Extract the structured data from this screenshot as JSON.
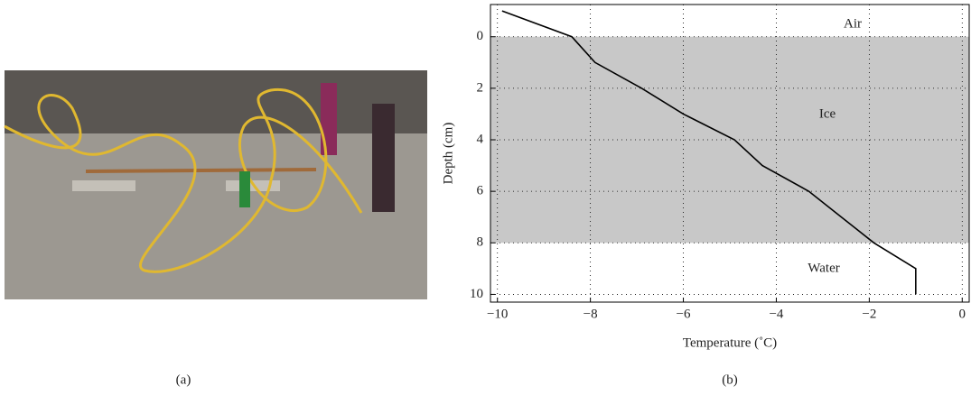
{
  "chart_data": {
    "type": "line",
    "xlabel": "Temperature (˚C)",
    "ylabel": "Depth (cm)",
    "x": [
      -9.9,
      -8.4,
      -7.9,
      -6.9,
      -6.0,
      -4.9,
      -4.3,
      -3.3,
      -2.6,
      -1.9,
      -1.0,
      -1.0
    ],
    "values": [
      -1,
      0,
      1,
      2,
      3,
      4,
      5,
      6,
      7,
      8,
      9,
      10
    ],
    "color": "#000000",
    "xlim": [
      -10.15,
      0.15
    ],
    "ylim": [
      -1.25,
      10.3
    ],
    "y_inverted": true,
    "xticks": [
      {
        "value": -10,
        "label": "−10"
      },
      {
        "value": -8,
        "label": "−8"
      },
      {
        "value": -6,
        "label": "−6"
      },
      {
        "value": -4,
        "label": "−4"
      },
      {
        "value": -2,
        "label": "−2"
      },
      0
    ],
    "yticks": [
      0,
      2,
      4,
      6,
      8,
      10
    ],
    "grid": true,
    "shaded_band": {
      "from": 0,
      "to": 8,
      "color": "#c8c8c8"
    },
    "annotations": [
      "Air",
      "Ice",
      "Water"
    ]
  },
  "panel_labels": [
    "(a)",
    "(b)"
  ]
}
